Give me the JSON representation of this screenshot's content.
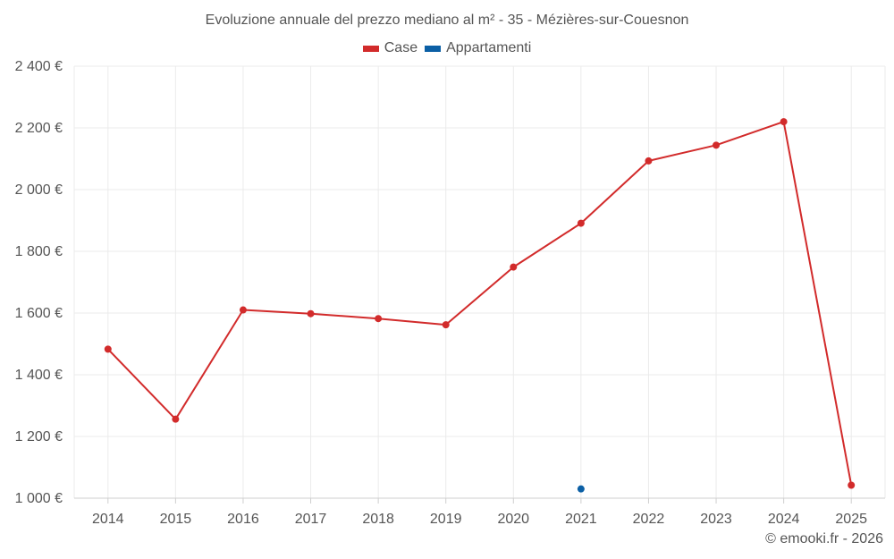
{
  "colors": {
    "case": "#d22b2b",
    "appartamenti": "#0b5fa5",
    "grid": "#ebebeb",
    "axis": "#cfcfcf"
  },
  "chart_data": {
    "type": "line",
    "title": "Evoluzione annuale del prezzo mediano al m² - 35 - Mézières-sur-Couesnon",
    "categories": [
      "2014",
      "2015",
      "2016",
      "2017",
      "2018",
      "2019",
      "2020",
      "2021",
      "2022",
      "2023",
      "2024",
      "2025"
    ],
    "series": [
      {
        "name": "Case",
        "color": "#d22b2b",
        "values": [
          1483,
          1256,
          1610,
          1598,
          1582,
          1562,
          1749,
          1891,
          2093,
          2144,
          2220,
          1042
        ]
      },
      {
        "name": "Appartamenti",
        "color": "#0b5fa5",
        "values": [
          null,
          null,
          null,
          null,
          null,
          null,
          null,
          1030,
          null,
          null,
          null,
          null
        ]
      }
    ],
    "ylim": [
      1000,
      2400
    ],
    "yticks": [
      1000,
      1200,
      1400,
      1600,
      1800,
      2000,
      2200,
      2400
    ],
    "ytick_labels": [
      "1 000 €",
      "1 200 €",
      "1 400 €",
      "1 600 €",
      "1 800 €",
      "2 000 €",
      "2 200 €",
      "2 400 €"
    ],
    "xlabel": "",
    "ylabel": "",
    "grid": true,
    "legend_position": "top-center"
  },
  "credit": "© emooki.fr - 2026"
}
